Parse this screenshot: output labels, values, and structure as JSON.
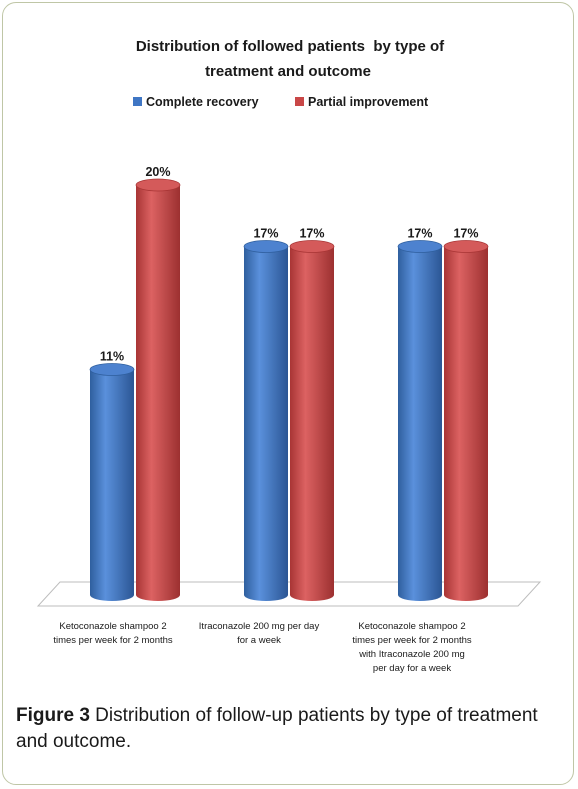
{
  "chart_data": {
    "type": "bar",
    "title_line1": "Distribution of followed patients  by type of",
    "title_line2": "treatment and outcome",
    "categories": [
      [
        "Ketoconazole shampoo 2",
        "times per week for 2 months"
      ],
      [
        "Itraconazole 200 mg per day",
        "for a week"
      ],
      [
        "Ketoconazole shampoo 2",
        "times per week for 2 months",
        "with Itraconazole 200 mg",
        "per day for a week"
      ]
    ],
    "series": [
      {
        "name": "Complete recovery",
        "values": [
          11,
          17,
          17
        ],
        "labels": [
          "11%",
          "17%",
          "17%"
        ],
        "color": "#3f76c4"
      },
      {
        "name": "Partial improvement",
        "values": [
          20,
          17,
          17
        ],
        "labels": [
          "20%",
          "17%",
          "17%"
        ],
        "color": "#c94747"
      }
    ],
    "ylim": [
      0,
      20
    ],
    "grid": false,
    "legend": "top"
  },
  "caption": {
    "label": "Figure 3",
    "text": " Distribution of follow-up patients by type of treatment and outcome."
  }
}
